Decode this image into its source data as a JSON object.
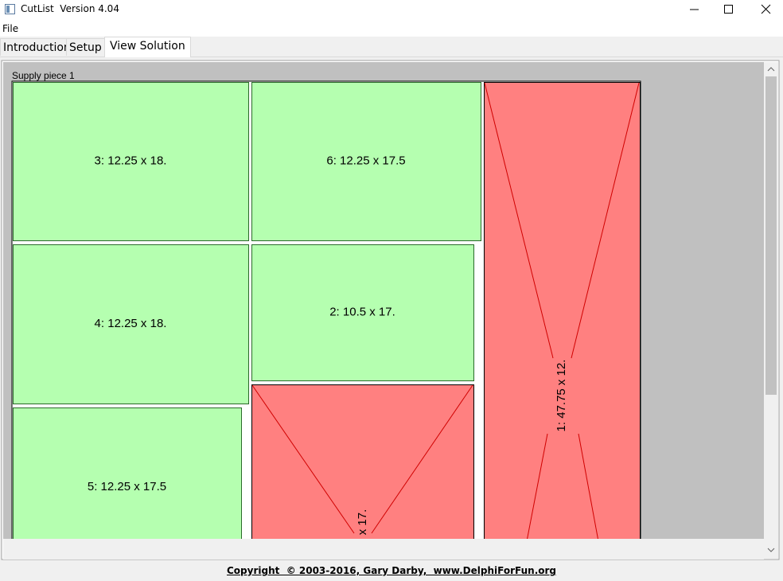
{
  "window": {
    "title": "CutList  Version 4.04"
  },
  "menu": [
    "File"
  ],
  "tabs": [
    "Introduction",
    "Setup",
    "View Solution"
  ],
  "canvas": {
    "label": "Supply piece 1",
    "pieces": [
      {
        "label": "3: 12.25 x 18."
      },
      {
        "label": "6: 12.25 x 17.5"
      },
      {
        "label": "4: 12.25 x 18."
      },
      {
        "label": "2: 10.5 x 17."
      },
      {
        "label": "5: 12.25 x 17.5"
      },
      {
        "label": "x 17."
      },
      {
        "label": "1: 47.75 x 12."
      }
    ]
  },
  "footer": "Copyright  © 2003-2016, Gary Darby,  www.DelphiForFun.org"
}
